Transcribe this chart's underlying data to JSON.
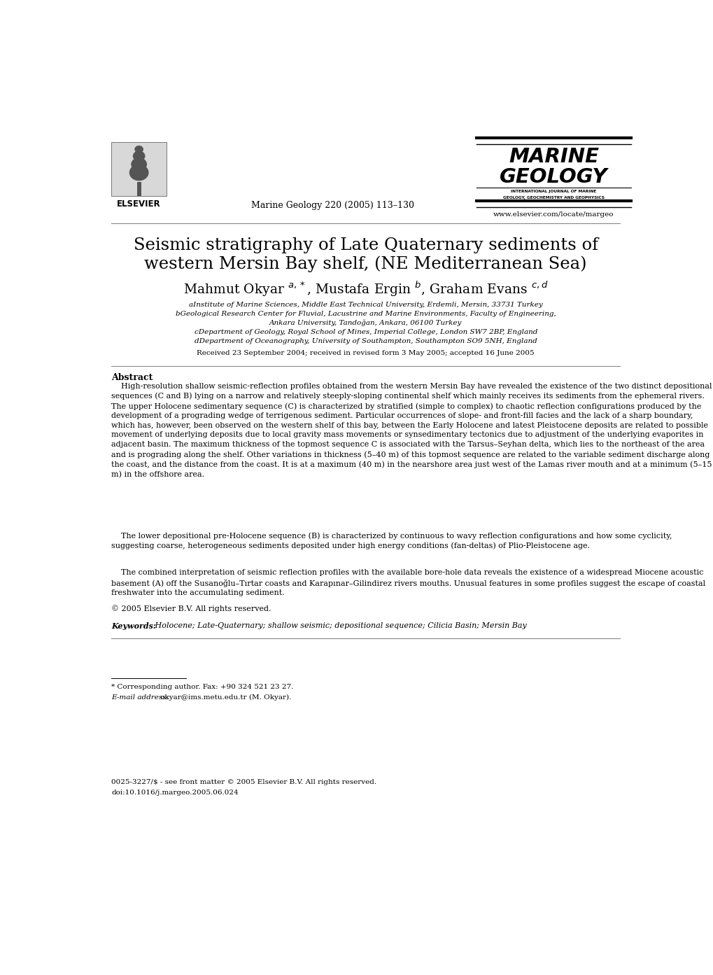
{
  "background_color": "#ffffff",
  "page_width": 10.2,
  "page_height": 13.93,
  "journal_ref": "Marine Geology 220 (2005) 113–130",
  "website": "www.elsevier.com/locate/margeo",
  "title_line1": "Seismic stratigraphy of Late Quaternary sediments of",
  "title_line2": "western Mersin Bay shelf, (NE Mediterranean Sea)",
  "affil_a": "aInstitute of Marine Sciences, Middle East Technical University, Erdemli, Mersin, 33731 Turkey",
  "affil_b": "bGeological Research Center for Fluvial, Lacustrine and Marine Environments, Faculty of Engineering,",
  "affil_b2": "Ankara University, Tandoğan, Ankara, 06100 Turkey",
  "affil_c": "cDepartment of Geology, Royal School of Mines, Imperial College, London SW7 2BP, England",
  "affil_d": "dDepartment of Oceanography, University of Southampton, Southampton SO9 5NH, England",
  "received": "Received 23 September 2004; received in revised form 3 May 2005; accepted 16 June 2005",
  "abstract_heading": "Abstract",
  "copyright": "© 2005 Elsevier B.V. All rights reserved.",
  "keywords_label": "Keywords:",
  "keywords_text": " Holocene; Late-Quaternary; shallow seismic; depositional sequence; Cilicia Basin; Mersin Bay",
  "footnote_star": "* Corresponding author. Fax: +90 324 521 23 27.",
  "footnote_email_label": "E-mail address:",
  "footnote_email_text": " okyar@ims.metu.edu.tr (M. Okyar).",
  "issn_line": "0025-3227/$ - see front matter © 2005 Elsevier B.V. All rights reserved.",
  "doi_line": "doi:10.1016/j.margeo.2005.06.024",
  "elsevier_label": "ELSEVIER",
  "marine_geology_line1": "MARINE",
  "marine_geology_line2": "GEOLOGY",
  "mg_sub1": "INTERNATIONAL JOURNAL OF MARINE",
  "mg_sub2": "GEOLOGY, GEOCHEMISTRY AND GEOPHYSICS",
  "abstract_p1": "    High-resolution shallow seismic-reflection profiles obtained from the western Mersin Bay have revealed the existence of the two distinct depositional sequences (C and B) lying on a narrow and relatively steeply-sloping continental shelf which mainly receives its sediments from the ephemeral rivers. The upper Holocene sedimentary sequence (C) is characterized by stratified (simple to complex) to chaotic reflection configurations produced by the development of a prograding wedge of terrigenous sediment. Particular occurrences of slope- and front-fill facies and the lack of a sharp boundary, which has, however, been observed on the western shelf of this bay, between the Early Holocene and latest Pleistocene deposits are related to possible movement of underlying deposits due to local gravity mass movements or synsedimentary tectonics due to adjustment of the underlying evaporites in adjacent basin. The maximum thickness of the topmost sequence C is associated with the Tarsus–Seyhan delta, which lies to the northeast of the area and is prograding along the shelf. Other variations in thickness (5–40 m) of this topmost sequence are related to the variable sediment discharge along the coast, and the distance from the coast. It is at a maximum (40 m) in the nearshore area just west of the Lamas river mouth and at a minimum (5–15 m) in the offshore area.",
  "abstract_p2": "    The lower depositional pre-Holocene sequence (B) is characterized by continuous to wavy reflection configurations and how some cyclicity, suggesting coarse, heterogeneous sediments deposited under high energy conditions (fan-deltas) of Plio-Pleistocene age.",
  "abstract_p3": "    The combined interpretation of seismic reflection profiles with the available bore-hole data reveals the existence of a widespread Miocene acoustic basement (A) off the Susanoğlu–Tırtar coasts and Karapınar–Gilindirez rivers mouths. Unusual features in some profiles suggest the escape of coastal freshwater into the accumulating sediment."
}
